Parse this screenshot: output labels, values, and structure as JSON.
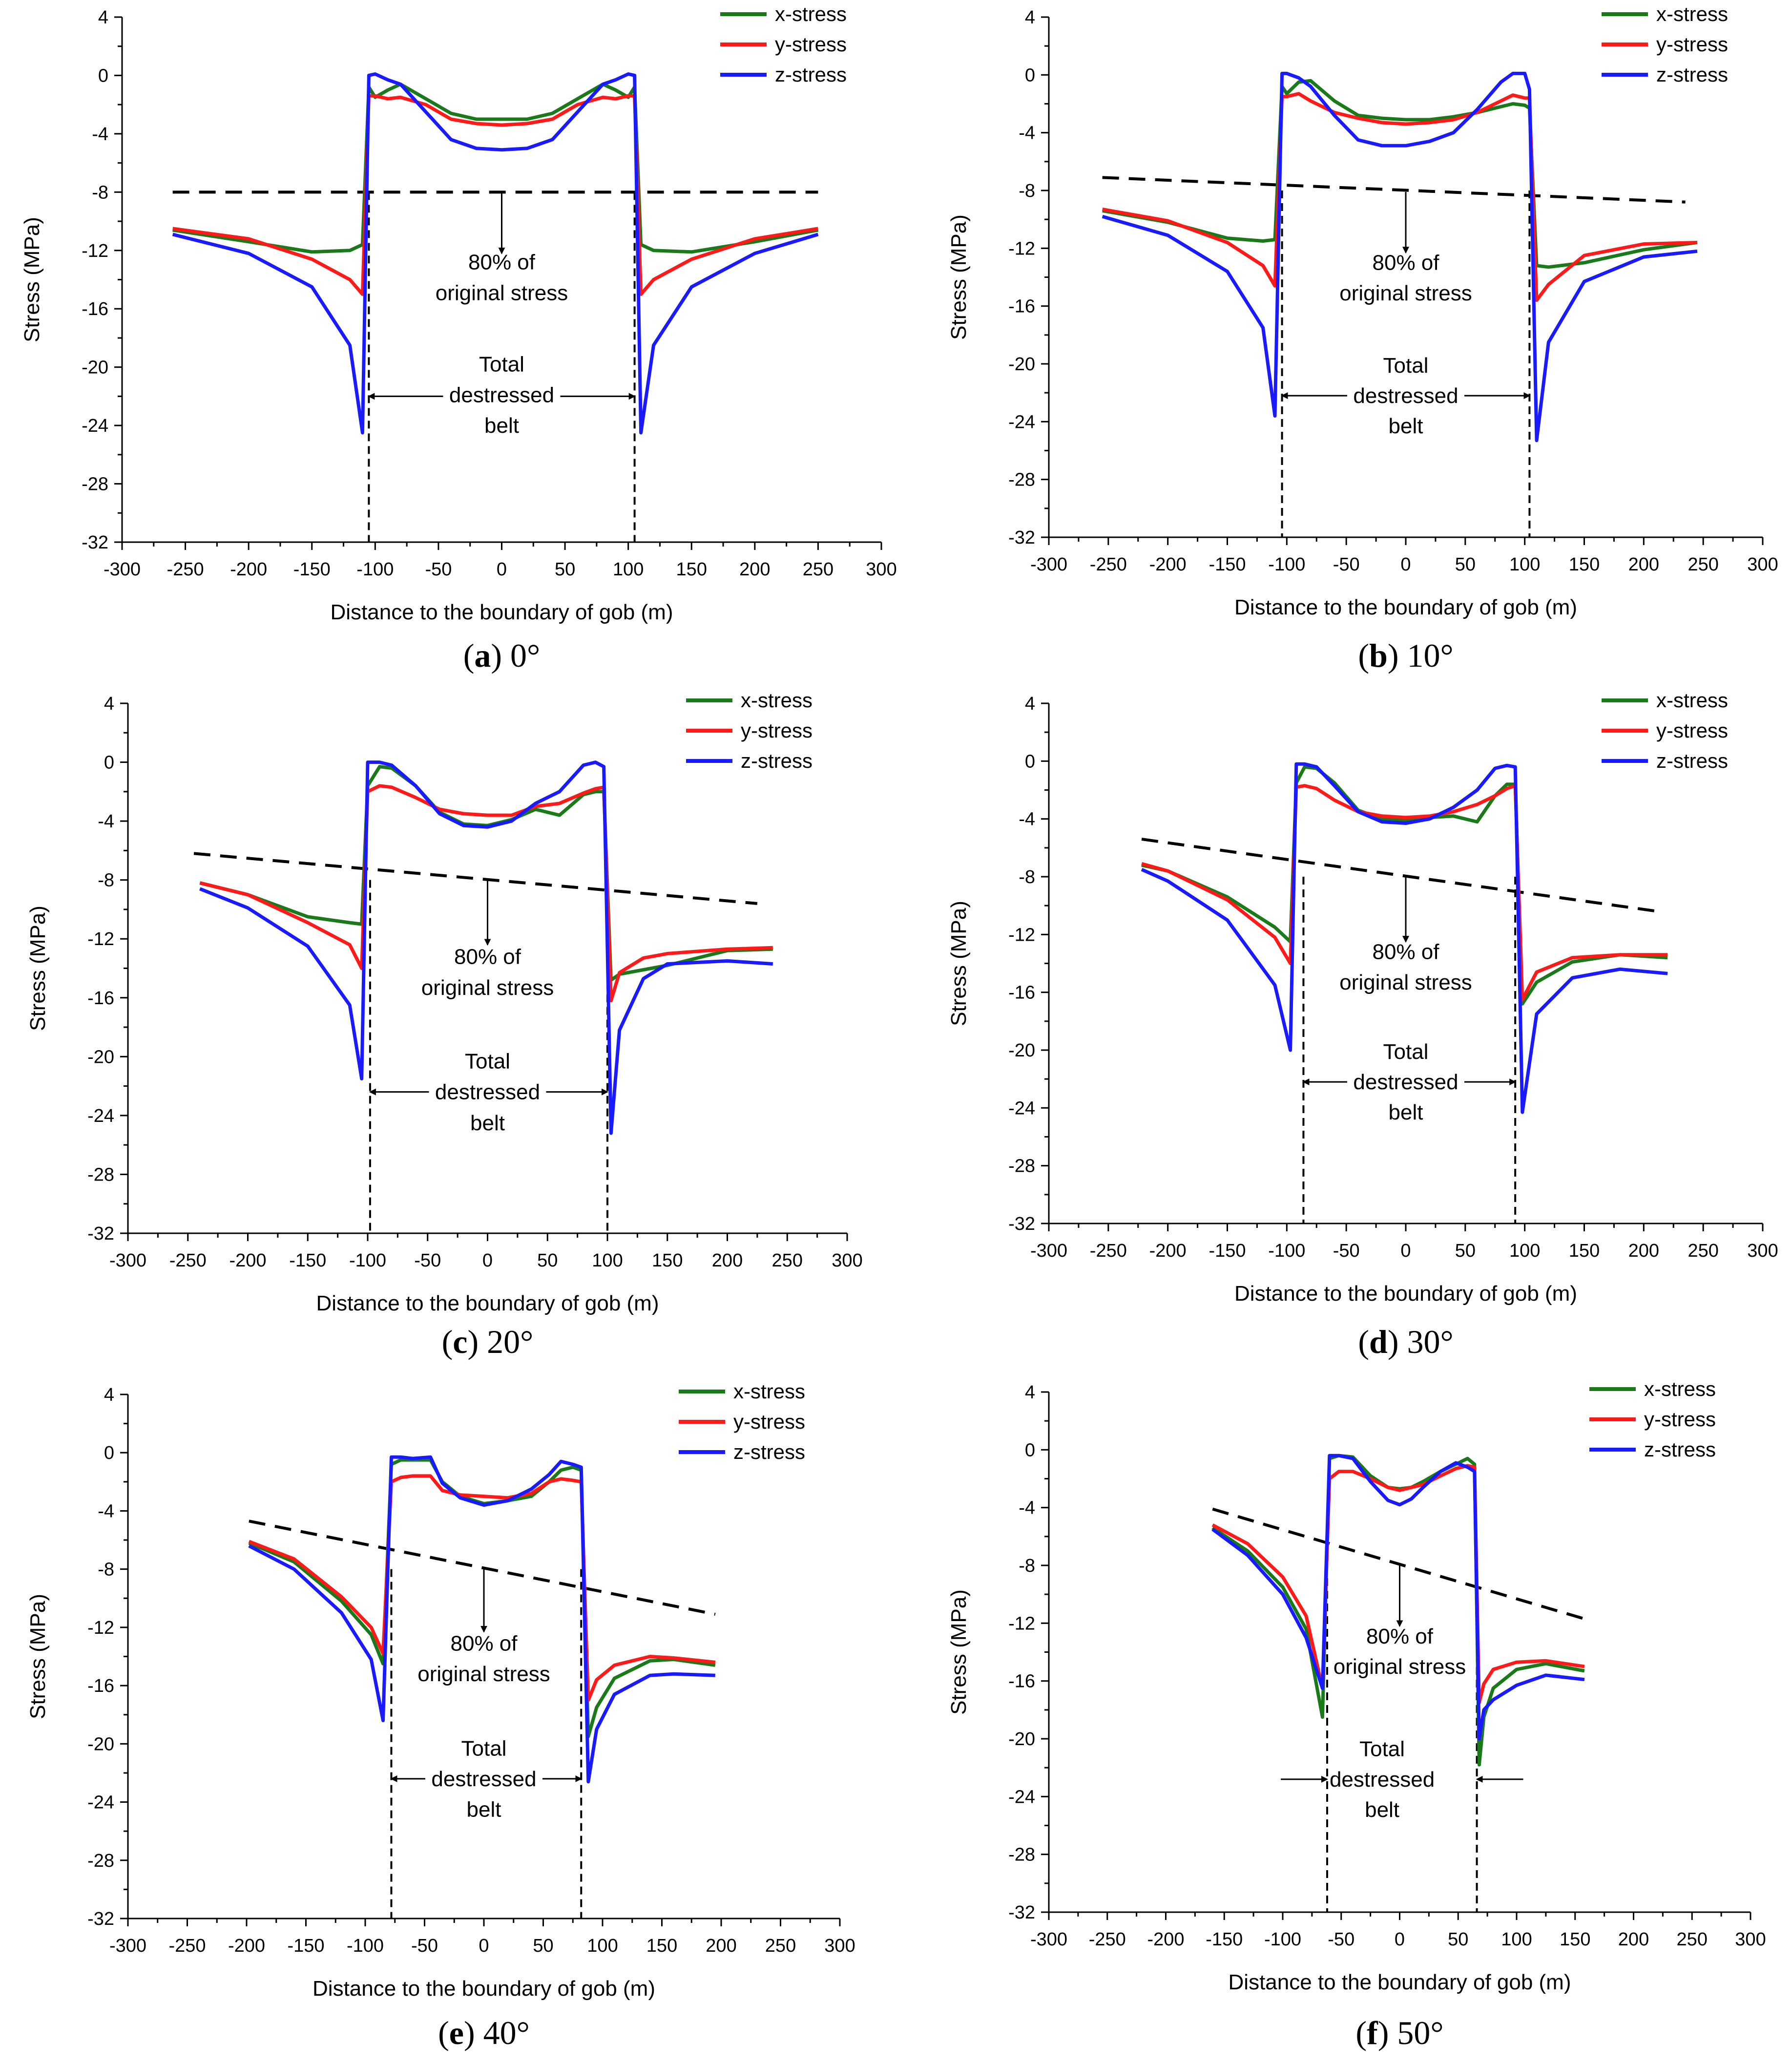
{
  "figure": {
    "xlabel": "Distance to the boundary of gob (m)",
    "ylabel": "Stress (MPa)",
    "xticks": [
      "-300",
      "-250",
      "-200",
      "-150",
      "-100",
      "-50",
      "0",
      "50",
      "100",
      "150",
      "200",
      "250",
      "300"
    ],
    "yticks": [
      "4",
      "0",
      "-4",
      "-8",
      "-12",
      "-16",
      "-20",
      "-24",
      "-28",
      "-32"
    ],
    "legend": [
      "x-stress",
      "y-stress",
      "z-stress"
    ],
    "annotation_80": [
      "80% of",
      "original stress"
    ],
    "annotation_belt": [
      "Total",
      "destressed",
      "belt"
    ]
  },
  "colors": {
    "x": "#1a7a1a",
    "y": "#ff1a1a",
    "z": "#1a1aff",
    "axis": "#000000"
  },
  "chart_data": [
    {
      "type": "line",
      "panel": "a",
      "caption_letter": "a",
      "caption_text": "0°",
      "xlim": [
        -300,
        300
      ],
      "ylim": [
        -32,
        4
      ],
      "legend_position": "top-right",
      "x": [
        -260,
        -200,
        -150,
        -120,
        -110,
        -105,
        -100,
        -90,
        -80,
        -60,
        -40,
        -20,
        0,
        20,
        40,
        60,
        80,
        90,
        100,
        105,
        110,
        120,
        150,
        200,
        250
      ],
      "series": [
        {
          "name": "x-stress",
          "values": [
            -10.6,
            -11.4,
            -12.1,
            -12.0,
            -11.6,
            -0.8,
            -1.5,
            -1.0,
            -0.6,
            -1.6,
            -2.6,
            -3.0,
            -3.0,
            -3.0,
            -2.6,
            -1.6,
            -0.6,
            -1.0,
            -1.5,
            -0.8,
            -11.6,
            -12.0,
            -12.1,
            -11.4,
            -10.6
          ]
        },
        {
          "name": "y-stress",
          "values": [
            -10.5,
            -11.2,
            -12.6,
            -14.0,
            -15.0,
            -1.4,
            -1.4,
            -1.6,
            -1.5,
            -2.0,
            -3.0,
            -3.3,
            -3.4,
            -3.3,
            -3.0,
            -2.0,
            -1.5,
            -1.6,
            -1.4,
            -1.4,
            -15.0,
            -14.0,
            -12.6,
            -11.2,
            -10.5
          ]
        },
        {
          "name": "z-stress",
          "values": [
            -10.9,
            -12.2,
            -14.5,
            -18.5,
            -24.5,
            0.0,
            0.1,
            -0.3,
            -0.6,
            -2.5,
            -4.4,
            -5.0,
            -5.1,
            -5.0,
            -4.4,
            -2.5,
            -0.6,
            -0.3,
            0.1,
            0.0,
            -24.5,
            -18.5,
            -14.5,
            -12.2,
            -10.9
          ]
        }
      ],
      "threshold_line": {
        "x": [
          -260,
          250
        ],
        "y": [
          -8,
          -8
        ]
      },
      "belt_bounds": [
        -105,
        105
      ],
      "belt_arrow_y": -22.0,
      "label_80_x": 0,
      "label_80_y": [
        -13.3,
        -15.4
      ],
      "arrow_80_from": -8,
      "arrow_80_to": -12.2,
      "label_belt_x": 0,
      "label_belt_y": [
        -19.8,
        -21.9,
        -24.0
      ]
    },
    {
      "type": "line",
      "panel": "b",
      "caption_letter": "b",
      "caption_text": "10°",
      "xlim": [
        -300,
        300
      ],
      "ylim": [
        -32,
        4
      ],
      "legend_position": "top-right",
      "x": [
        -255,
        -200,
        -150,
        -120,
        -110,
        -104,
        -100,
        -90,
        -80,
        -60,
        -40,
        -20,
        0,
        20,
        40,
        60,
        80,
        90,
        100,
        104,
        110,
        120,
        150,
        200,
        245
      ],
      "series": [
        {
          "name": "x-stress",
          "values": [
            -9.4,
            -10.2,
            -11.3,
            -11.5,
            -11.4,
            -0.8,
            -1.3,
            -0.5,
            -0.4,
            -1.8,
            -2.8,
            -3.0,
            -3.1,
            -3.1,
            -2.9,
            -2.6,
            -2.2,
            -2.0,
            -2.1,
            -2.3,
            -13.2,
            -13.3,
            -13.0,
            -12.1,
            -11.6
          ]
        },
        {
          "name": "y-stress",
          "values": [
            -9.3,
            -10.1,
            -11.6,
            -13.2,
            -14.6,
            -1.5,
            -1.5,
            -1.3,
            -1.8,
            -2.6,
            -3.0,
            -3.3,
            -3.4,
            -3.3,
            -3.1,
            -2.6,
            -1.8,
            -1.4,
            -1.6,
            -1.6,
            -15.6,
            -14.5,
            -12.5,
            -11.7,
            -11.6
          ]
        },
        {
          "name": "z-stress",
          "values": [
            -9.8,
            -11.1,
            -13.6,
            -17.5,
            -23.6,
            0.1,
            0.1,
            -0.2,
            -0.8,
            -2.8,
            -4.5,
            -4.9,
            -4.9,
            -4.6,
            -4.0,
            -2.4,
            -0.5,
            0.1,
            0.1,
            -1.0,
            -25.3,
            -18.5,
            -14.3,
            -12.6,
            -12.2
          ]
        }
      ],
      "threshold_line": {
        "x": [
          -255,
          235
        ],
        "y": [
          -7.1,
          -8.8
        ]
      },
      "belt_bounds": [
        -104,
        104
      ],
      "belt_arrow_y": -22.2,
      "label_80_x": 0,
      "label_80_y": [
        -13.5,
        -15.6
      ],
      "arrow_80_from": -8.1,
      "arrow_80_to": -12.3,
      "label_belt_x": 0,
      "label_belt_y": [
        -20.1,
        -22.2,
        -24.3
      ]
    },
    {
      "type": "line",
      "panel": "c",
      "caption_letter": "c",
      "caption_text": "20°",
      "xlim": [
        -300,
        300
      ],
      "ylim": [
        -32,
        4
      ],
      "legend_position": "top-right",
      "x": [
        -240,
        -200,
        -150,
        -115,
        -105,
        -100,
        -90,
        -80,
        -60,
        -40,
        -20,
        0,
        20,
        40,
        60,
        80,
        90,
        97,
        103,
        110,
        130,
        150,
        200,
        238
      ],
      "series": [
        {
          "name": "x-stress",
          "values": [
            -8.2,
            -9.0,
            -10.5,
            -10.9,
            -11.0,
            -1.6,
            -0.3,
            -0.4,
            -1.6,
            -3.4,
            -4.2,
            -4.3,
            -3.9,
            -3.2,
            -3.6,
            -2.2,
            -2.0,
            -2.0,
            -14.8,
            -14.4,
            -14.1,
            -13.8,
            -12.8,
            -12.7
          ]
        },
        {
          "name": "y-stress",
          "values": [
            -8.2,
            -9.0,
            -10.9,
            -12.4,
            -14.0,
            -2.0,
            -1.6,
            -1.7,
            -2.4,
            -3.2,
            -3.5,
            -3.6,
            -3.6,
            -3.0,
            -2.8,
            -2.1,
            -1.8,
            -1.7,
            -16.2,
            -14.3,
            -13.3,
            -13.0,
            -12.7,
            -12.6
          ]
        },
        {
          "name": "z-stress",
          "values": [
            -8.6,
            -9.9,
            -12.5,
            -16.5,
            -21.5,
            0.0,
            0.0,
            -0.2,
            -1.6,
            -3.5,
            -4.3,
            -4.4,
            -4.0,
            -2.8,
            -2.0,
            -0.2,
            0.0,
            -0.3,
            -25.2,
            -18.2,
            -14.7,
            -13.7,
            -13.5,
            -13.7
          ]
        }
      ],
      "threshold_line": {
        "x": [
          -245,
          225
        ],
        "y": [
          -6.2,
          -9.6
        ]
      },
      "belt_bounds": [
        -98,
        100
      ],
      "belt_arrow_y": -22.4,
      "label_80_x": 0,
      "label_80_y": [
        -13.7,
        -15.8
      ],
      "arrow_80_from": -8.0,
      "arrow_80_to": -12.4,
      "label_belt_x": 0,
      "label_belt_y": [
        -20.3,
        -22.4,
        -24.5
      ]
    },
    {
      "type": "line",
      "panel": "d",
      "caption_letter": "d",
      "caption_text": "30°",
      "xlim": [
        -300,
        300
      ],
      "ylim": [
        -32,
        4
      ],
      "legend_position": "top-right",
      "x": [
        -222,
        -200,
        -150,
        -110,
        -97,
        -92,
        -85,
        -75,
        -60,
        -40,
        -20,
        0,
        20,
        40,
        60,
        75,
        85,
        92,
        98,
        110,
        140,
        180,
        220
      ],
      "series": [
        {
          "name": "x-stress",
          "values": [
            -7.2,
            -7.6,
            -9.4,
            -11.5,
            -12.5,
            -1.5,
            -0.4,
            -0.5,
            -1.5,
            -3.4,
            -4.0,
            -4.1,
            -3.9,
            -3.8,
            -4.2,
            -2.4,
            -1.6,
            -1.6,
            -16.8,
            -15.3,
            -13.9,
            -13.4,
            -13.6
          ]
        },
        {
          "name": "y-stress",
          "values": [
            -7.1,
            -7.6,
            -9.6,
            -12.2,
            -14.0,
            -1.8,
            -1.7,
            -1.9,
            -2.7,
            -3.5,
            -3.8,
            -3.9,
            -3.8,
            -3.5,
            -3.0,
            -2.4,
            -1.9,
            -1.7,
            -16.5,
            -14.6,
            -13.6,
            -13.4,
            -13.4
          ]
        },
        {
          "name": "z-stress",
          "values": [
            -7.5,
            -8.3,
            -11.0,
            -15.5,
            -20.0,
            -0.2,
            -0.2,
            -0.4,
            -1.7,
            -3.5,
            -4.2,
            -4.3,
            -4.0,
            -3.2,
            -2.0,
            -0.5,
            -0.3,
            -0.4,
            -24.3,
            -17.5,
            -15.0,
            -14.4,
            -14.7
          ]
        }
      ],
      "threshold_line": {
        "x": [
          -222,
          212
        ],
        "y": [
          -5.4,
          -10.4
        ]
      },
      "belt_bounds": [
        -86,
        92
      ],
      "belt_arrow_y": -22.2,
      "label_80_x": 0,
      "label_80_y": [
        -13.7,
        -15.8
      ],
      "arrow_80_from": -8.0,
      "arrow_80_to": -12.5,
      "label_belt_x": 0,
      "label_belt_y": [
        -20.1,
        -22.2,
        -24.3
      ]
    },
    {
      "type": "line",
      "panel": "e",
      "caption_letter": "e",
      "caption_text": "40°",
      "xlim": [
        -300,
        300
      ],
      "ylim": [
        -32,
        4
      ],
      "legend_position": "top-right",
      "x": [
        -198,
        -160,
        -120,
        -95,
        -85,
        -78,
        -70,
        -60,
        -45,
        -35,
        -20,
        0,
        20,
        40,
        55,
        65,
        75,
        82,
        88,
        95,
        110,
        140,
        160,
        195
      ],
      "series": [
        {
          "name": "x-stress",
          "values": [
            -6.2,
            -7.5,
            -10.2,
            -12.5,
            -14.5,
            -0.8,
            -0.5,
            -0.5,
            -0.5,
            -2.0,
            -3.0,
            -3.5,
            -3.3,
            -3.0,
            -2.0,
            -1.2,
            -1.0,
            -1.2,
            -19.5,
            -17.5,
            -15.5,
            -14.3,
            -14.2,
            -14.6
          ]
        },
        {
          "name": "y-stress",
          "values": [
            -6.1,
            -7.3,
            -9.9,
            -12.0,
            -13.8,
            -2.0,
            -1.7,
            -1.6,
            -1.6,
            -2.6,
            -2.9,
            -3.0,
            -3.1,
            -2.8,
            -2.0,
            -1.8,
            -1.9,
            -2.0,
            -17.0,
            -15.6,
            -14.6,
            -14.0,
            -14.1,
            -14.4
          ]
        },
        {
          "name": "z-stress",
          "values": [
            -6.4,
            -8.0,
            -11.0,
            -14.2,
            -18.4,
            -0.3,
            -0.3,
            -0.4,
            -0.3,
            -2.1,
            -3.1,
            -3.6,
            -3.3,
            -2.5,
            -1.5,
            -0.6,
            -0.8,
            -1.0,
            -22.6,
            -19.0,
            -16.6,
            -15.3,
            -15.2,
            -15.3
          ]
        }
      ],
      "threshold_line": {
        "x": [
          -198,
          195
        ],
        "y": [
          -4.7,
          -11.1
        ]
      },
      "belt_bounds": [
        -78,
        82
      ],
      "belt_arrow_y": -22.4,
      "label_80_x": 0,
      "label_80_y": [
        -13.6,
        -15.7
      ],
      "arrow_80_from": -8.0,
      "arrow_80_to": -12.3,
      "label_belt_x": 0,
      "label_belt_y": [
        -20.3,
        -22.4,
        -24.5
      ]
    },
    {
      "type": "line",
      "panel": "f",
      "caption_letter": "f",
      "caption_text": "50°",
      "xlim": [
        -300,
        300
      ],
      "ylim": [
        -32,
        4
      ],
      "legend_position": "top-right",
      "x": [
        -160,
        -130,
        -100,
        -80,
        -66,
        -60,
        -52,
        -40,
        -25,
        -10,
        0,
        10,
        20,
        35,
        48,
        58,
        64,
        68,
        72,
        80,
        100,
        125,
        158
      ],
      "series": [
        {
          "name": "x-stress",
          "values": [
            -5.4,
            -7.0,
            -9.5,
            -12.4,
            -18.5,
            -0.6,
            -0.4,
            -0.5,
            -1.8,
            -2.6,
            -2.7,
            -2.6,
            -2.2,
            -1.5,
            -1.0,
            -0.6,
            -1.0,
            -21.8,
            -18.5,
            -16.5,
            -15.2,
            -14.8,
            -15.3
          ]
        },
        {
          "name": "y-stress",
          "values": [
            -5.2,
            -6.5,
            -8.8,
            -11.5,
            -16.5,
            -2.0,
            -1.5,
            -1.5,
            -2.0,
            -2.6,
            -2.8,
            -2.6,
            -2.4,
            -1.8,
            -1.3,
            -1.1,
            -1.2,
            -17.5,
            -16.2,
            -15.2,
            -14.7,
            -14.6,
            -15.0
          ]
        },
        {
          "name": "z-stress",
          "values": [
            -5.5,
            -7.3,
            -10.0,
            -13.0,
            -16.5,
            -0.4,
            -0.4,
            -0.6,
            -2.2,
            -3.5,
            -3.8,
            -3.4,
            -2.6,
            -1.5,
            -0.9,
            -1.2,
            -1.5,
            -20.0,
            -18.0,
            -17.3,
            -16.3,
            -15.6,
            -15.9
          ]
        }
      ],
      "threshold_line": {
        "x": [
          -160,
          158
        ],
        "y": [
          -4.1,
          -11.7
        ]
      },
      "belt_bounds": [
        -62,
        66
      ],
      "belt_arrow_y": -22.8,
      "label_80_x": 0,
      "label_80_y": [
        -13.4,
        -15.5
      ],
      "arrow_80_from": -8.0,
      "arrow_80_to": -12.2,
      "label_belt_x": -15,
      "label_belt_y": [
        -20.7,
        -22.8,
        -24.9
      ],
      "belt_arrows_outside": true
    }
  ]
}
